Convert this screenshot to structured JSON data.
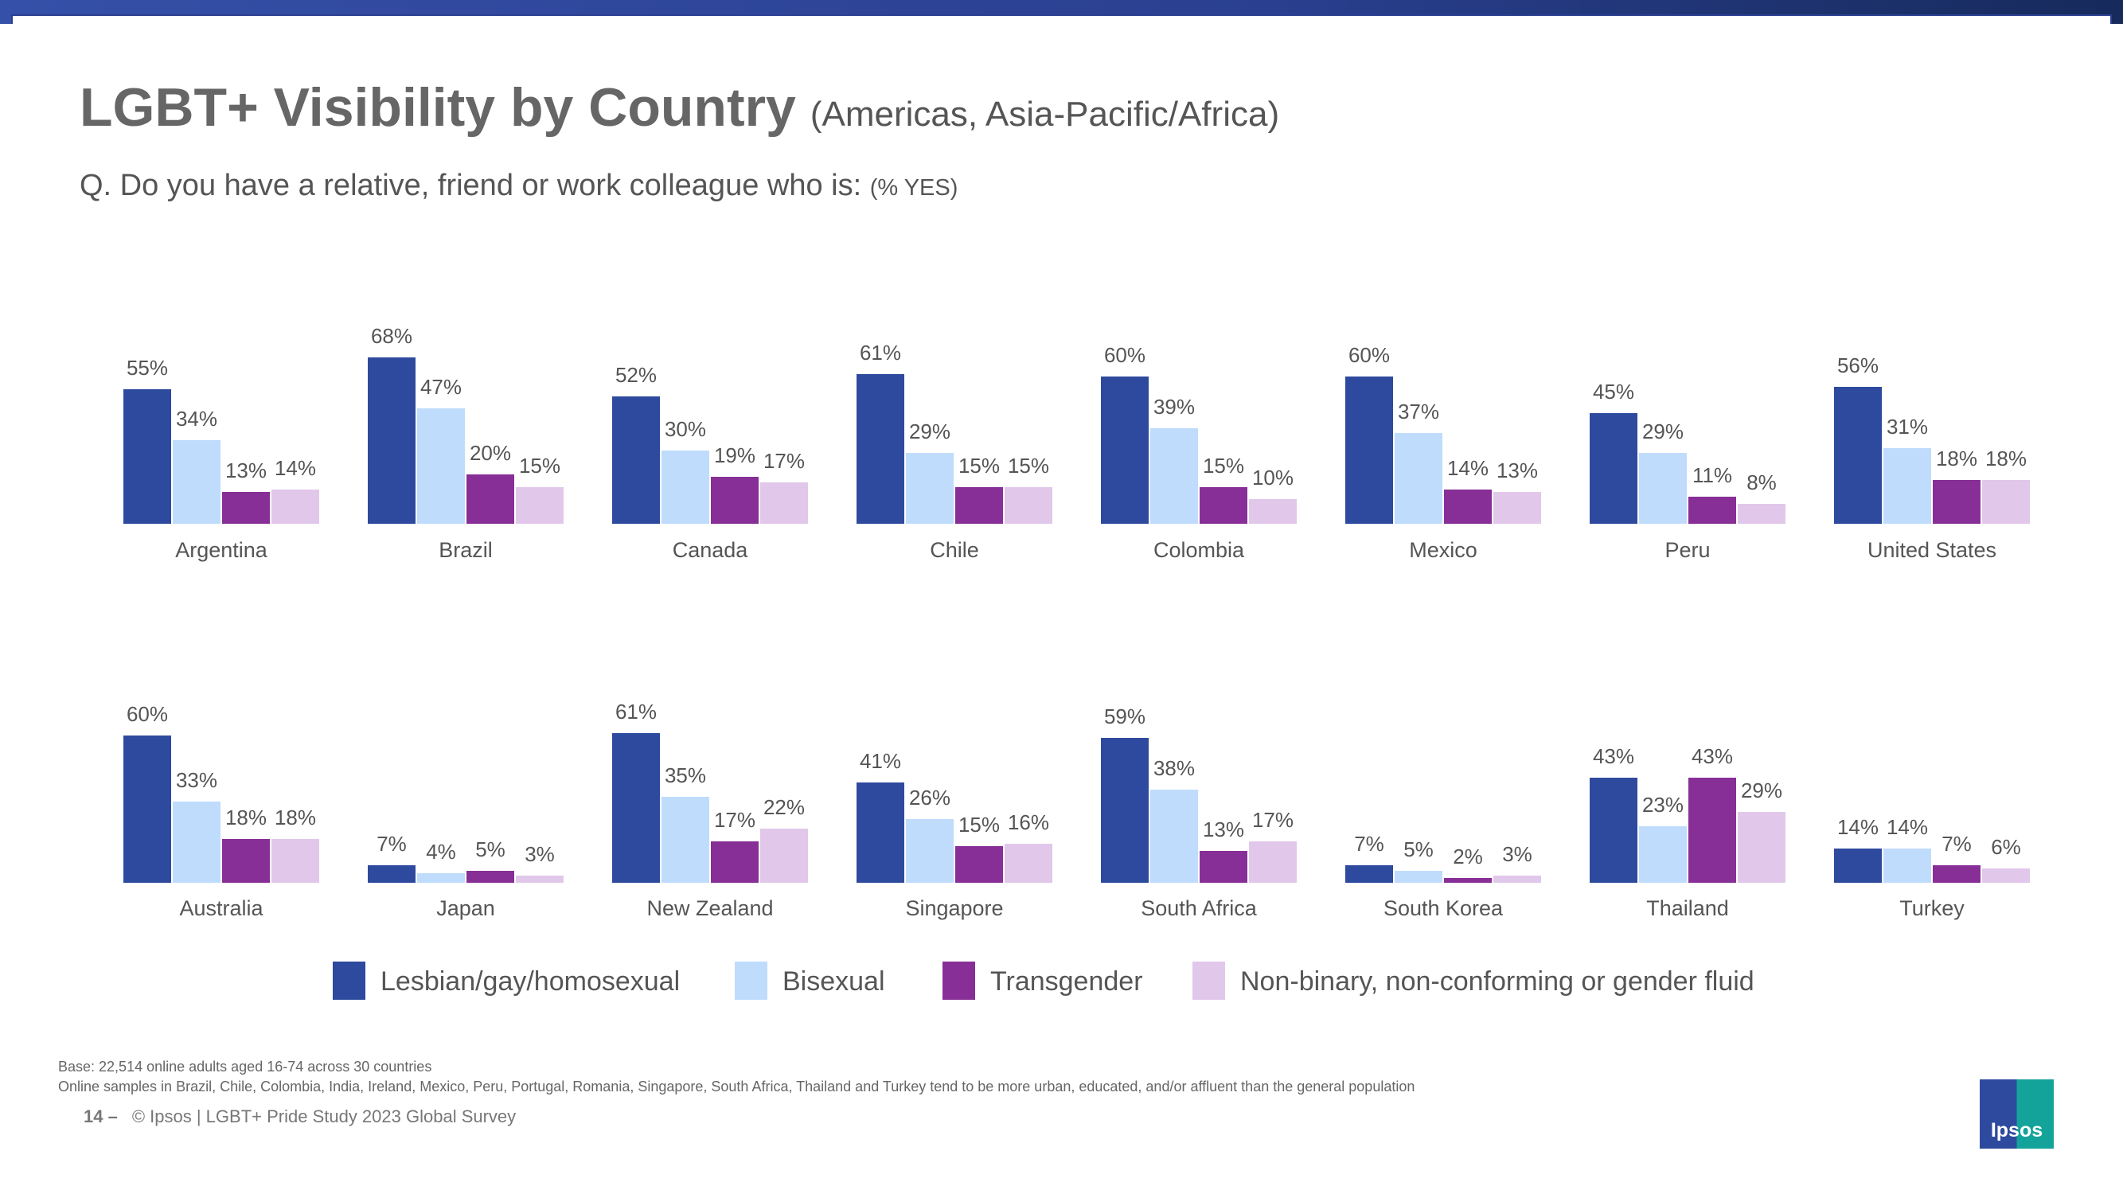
{
  "header": {
    "title": "LGBT+ Visibility by Country",
    "subtitle": "(Americas, Asia-Pacific/Africa)",
    "question": "Q. Do you have a relative, friend or work colleague who is:",
    "question_unit": "(% YES)"
  },
  "chart_data": {
    "type": "bar",
    "series_names": [
      "Lesbian/gay/homosexual",
      "Bisexual",
      "Transgender",
      "Non-binary, non-conforming or gender fluid"
    ],
    "colors": [
      "#2e4a9e",
      "#bfdcfd",
      "#872f96",
      "#e1c7ea"
    ],
    "ylim": [
      0,
      100
    ],
    "grid": false,
    "legend_placement": "bottom",
    "panels": [
      {
        "categories": [
          "Argentina",
          "Brazil",
          "Canada",
          "Chile",
          "Colombia",
          "Mexico",
          "Peru",
          "United States"
        ],
        "values": [
          [
            55,
            34,
            13,
            14
          ],
          [
            68,
            47,
            20,
            15
          ],
          [
            52,
            30,
            19,
            17
          ],
          [
            61,
            29,
            15,
            15
          ],
          [
            60,
            39,
            15,
            10
          ],
          [
            60,
            37,
            14,
            13
          ],
          [
            45,
            29,
            11,
            8
          ],
          [
            56,
            31,
            18,
            18
          ]
        ]
      },
      {
        "categories": [
          "Australia",
          "Japan",
          "New Zealand",
          "Singapore",
          "South Africa",
          "South Korea",
          "Thailand",
          "Turkey"
        ],
        "values": [
          [
            60,
            33,
            18,
            18
          ],
          [
            7,
            4,
            5,
            3
          ],
          [
            61,
            35,
            17,
            22
          ],
          [
            41,
            26,
            15,
            16
          ],
          [
            59,
            38,
            13,
            17
          ],
          [
            7,
            5,
            2,
            3
          ],
          [
            43,
            23,
            43,
            29
          ],
          [
            14,
            14,
            7,
            6
          ]
        ]
      }
    ]
  },
  "footer": {
    "base": "Base: 22,514 online adults aged 16-74 across 30 countries",
    "note": "Online samples in Brazil, Chile, Colombia, India, Ireland, Mexico, Peru, Portugal, Romania, Singapore, South Africa, Thailand and Turkey tend to be more urban, educated, and/or affluent than the general population",
    "page_number": "14 –",
    "copyright": "© Ipsos | LGBT+ Pride Study 2023 Global Survey",
    "logo": "Ipsos"
  }
}
